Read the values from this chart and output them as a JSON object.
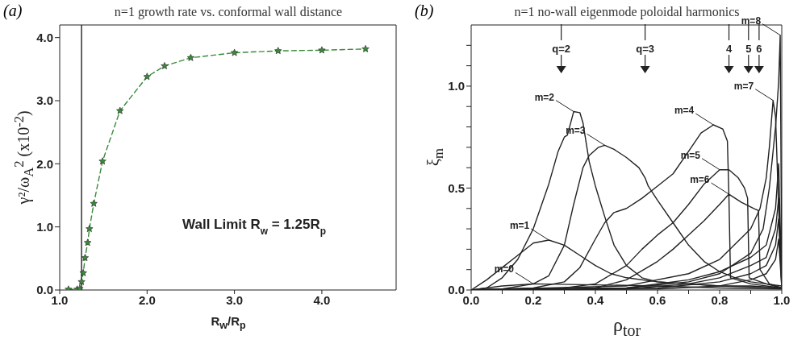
{
  "chart_data": [
    {
      "type": "line",
      "title": "n=1 growth rate vs. conformal wall distance",
      "xlabel": "R$_{w}$/R$_{p}$",
      "ylabel": "γ²/ω$_{A}$$^{2}$ (x10$^{-2}$)",
      "annotations": [
        "(a)"
      ],
      "xlim": [
        1.0,
        4.85
      ],
      "ylim": [
        0,
        4.2
      ],
      "xticks": [
        {
          "value": 1,
          "label": "1.0"
        },
        {
          "value": 2,
          "label": "2.0"
        },
        {
          "value": 3,
          "label": "3.0"
        },
        {
          "value": 4,
          "label": "4.0"
        }
      ],
      "yticks": [
        {
          "value": 0,
          "label": "0.0"
        },
        {
          "value": 1,
          "label": "1.0"
        },
        {
          "value": 2,
          "label": "2.0"
        },
        {
          "value": 3,
          "label": "3.0"
        },
        {
          "value": 4,
          "label": "4.0"
        }
      ],
      "marker": "star",
      "line_style": "dashed",
      "ref_lines": [
        {
          "axis": "x",
          "value": 1.25,
          "label": "Wall Limit  R$_{w}$ = 1.25R$_{p}$",
          "color": "#222222"
        }
      ],
      "series": [
        {
          "color": "#3a8a3a",
          "x": [
            1.1,
            1.2,
            1.23,
            1.25,
            1.27,
            1.29,
            1.32,
            1.34,
            1.39,
            1.49,
            1.69,
            2.0,
            2.2,
            2.5,
            3.0,
            3.5,
            4.0,
            4.5
          ],
          "values": [
            0.01,
            0.01,
            0.02,
            0.13,
            0.27,
            0.51,
            0.75,
            0.97,
            1.37,
            2.04,
            2.84,
            3.38,
            3.55,
            3.68,
            3.76,
            3.79,
            3.8,
            3.82
          ]
        }
      ]
    },
    {
      "type": "line",
      "title": "n=1 no-wall eigenmode poloidal harmonics",
      "xlabel": "ρ$_{tor}$",
      "ylabel": "ξ$_{m}$",
      "marker": "none",
      "line_style": "solid",
      "annotations": [
        "(b)",
        "q=2",
        "q=3",
        "4",
        "5",
        "6"
      ],
      "xlim": [
        0,
        1
      ],
      "ylim": [
        0,
        1.3
      ],
      "xticks": [
        {
          "value": 0,
          "label": "0.0"
        },
        {
          "value": 0.1,
          "label": null
        },
        {
          "value": 0.2,
          "label": "0.2"
        },
        {
          "value": 0.3,
          "label": null
        },
        {
          "value": 0.4,
          "label": "0.4"
        },
        {
          "value": 0.5,
          "label": null
        },
        {
          "value": 0.6,
          "label": "0.6"
        },
        {
          "value": 0.7,
          "label": null
        },
        {
          "value": 0.8,
          "label": "0.8"
        },
        {
          "value": 0.9,
          "label": null
        },
        {
          "value": 1,
          "label": "1.0"
        }
      ],
      "yticks": [
        {
          "value": 0,
          "label": "0.0"
        },
        {
          "value": 0.1,
          "label": null
        },
        {
          "value": 0.2,
          "label": null
        },
        {
          "value": 0.3,
          "label": null
        },
        {
          "value": 0.4,
          "label": null
        },
        {
          "value": 0.5,
          "label": "0.5"
        },
        {
          "value": 0.6,
          "label": null
        },
        {
          "value": 0.7,
          "label": null
        },
        {
          "value": 0.8,
          "label": null
        },
        {
          "value": 0.9,
          "label": null
        },
        {
          "value": 1,
          "label": "1.0"
        },
        {
          "value": 1.1,
          "label": null
        },
        {
          "value": 1.2,
          "label": null
        }
      ],
      "series": [
        {
          "name": "m=0",
          "color": "#222222",
          "x": [
            0,
            0.1,
            0.2,
            0.4,
            0.6,
            0.8,
            1.0
          ],
          "values": [
            0,
            0.02,
            0.03,
            0.025,
            0.02,
            0.01,
            0.005
          ]
        },
        {
          "name": "m=1",
          "color": "#222222",
          "x": [
            0,
            0.05,
            0.1,
            0.15,
            0.2,
            0.25,
            0.3,
            0.35,
            0.4,
            0.45,
            0.5,
            0.6,
            0.7,
            0.8,
            0.9,
            1.0
          ],
          "values": [
            0,
            0.05,
            0.11,
            0.17,
            0.23,
            0.245,
            0.22,
            0.17,
            0.12,
            0.08,
            0.06,
            0.04,
            0.03,
            0.02,
            0.015,
            0.01
          ]
        },
        {
          "name": "m=2",
          "color": "#222222",
          "x": [
            0,
            0.05,
            0.1,
            0.15,
            0.2,
            0.25,
            0.28,
            0.3,
            0.31,
            0.33,
            0.35,
            0.36,
            0.38,
            0.4,
            0.43,
            0.46,
            0.5,
            0.55,
            0.6,
            0.7,
            0.8,
            0.9,
            1.0
          ],
          "values": [
            0,
            0.01,
            0.06,
            0.15,
            0.3,
            0.52,
            0.68,
            0.75,
            0.76,
            0.875,
            0.87,
            0.82,
            0.63,
            0.51,
            0.36,
            0.22,
            0.12,
            0.06,
            0.04,
            0.03,
            0.02,
            0.02,
            0.01
          ]
        },
        {
          "name": "m=3",
          "color": "#222222",
          "x": [
            0,
            0.1,
            0.2,
            0.25,
            0.3,
            0.33,
            0.36,
            0.38,
            0.41,
            0.43,
            0.46,
            0.5,
            0.54,
            0.56,
            0.57,
            0.6,
            0.65,
            0.7,
            0.75,
            0.8,
            0.85,
            0.9,
            0.95,
            1.0
          ],
          "values": [
            0,
            0.005,
            0.03,
            0.07,
            0.22,
            0.42,
            0.6,
            0.66,
            0.7,
            0.71,
            0.69,
            0.65,
            0.6,
            0.55,
            0.51,
            0.44,
            0.33,
            0.22,
            0.14,
            0.09,
            0.06,
            0.04,
            0.03,
            0.02
          ]
        },
        {
          "name": "m=4",
          "color": "#222222",
          "x": [
            0,
            0.2,
            0.3,
            0.35,
            0.4,
            0.43,
            0.46,
            0.5,
            0.55,
            0.6,
            0.65,
            0.7,
            0.74,
            0.78,
            0.81,
            0.825,
            0.83,
            0.835,
            0.9,
            1.0
          ],
          "values": [
            0,
            0.01,
            0.04,
            0.11,
            0.25,
            0.33,
            0.38,
            0.4,
            0.45,
            0.51,
            0.57,
            0.68,
            0.77,
            0.81,
            0.79,
            0.73,
            0.45,
            0.06,
            0.03,
            0.01
          ]
        },
        {
          "name": "m=5",
          "color": "#222222",
          "x": [
            0,
            0.3,
            0.4,
            0.5,
            0.55,
            0.6,
            0.65,
            0.7,
            0.75,
            0.8,
            0.83,
            0.86,
            0.88,
            0.89,
            0.895,
            0.95,
            1.0
          ],
          "values": [
            0,
            0.01,
            0.03,
            0.12,
            0.2,
            0.27,
            0.33,
            0.42,
            0.52,
            0.59,
            0.59,
            0.55,
            0.5,
            0.45,
            0.06,
            0.03,
            0.01
          ]
        },
        {
          "name": "m=6",
          "color": "#222222",
          "x": [
            0,
            0.3,
            0.4,
            0.5,
            0.6,
            0.65,
            0.7,
            0.75,
            0.8,
            0.83,
            0.87,
            0.91,
            0.925,
            0.93,
            0.96,
            1.0
          ],
          "values": [
            0,
            0.005,
            0.01,
            0.05,
            0.14,
            0.2,
            0.27,
            0.34,
            0.42,
            0.47,
            0.43,
            0.4,
            0.39,
            0.1,
            0.03,
            0.01
          ]
        },
        {
          "name": "m=7",
          "color": "#222222",
          "x": [
            0,
            0.5,
            0.7,
            0.8,
            0.9,
            0.93,
            0.95,
            0.96,
            0.972,
            0.98,
            0.99,
            1.0
          ],
          "values": [
            0,
            0.02,
            0.08,
            0.15,
            0.3,
            0.4,
            0.55,
            0.7,
            0.93,
            0.85,
            0.4,
            0.02
          ]
        },
        {
          "name": "m=8",
          "color": "#222222",
          "x": [
            0,
            0.5,
            0.7,
            0.8,
            0.9,
            0.94,
            0.96,
            0.98,
            0.99,
            0.995,
            1.0
          ],
          "values": [
            0,
            0.01,
            0.04,
            0.08,
            0.18,
            0.3,
            0.5,
            0.8,
            1.02,
            1.25,
            0.05
          ]
        },
        {
          "color": "#222222",
          "x": [
            0,
            0.5,
            0.7,
            0.8,
            0.9,
            0.95,
            0.98,
            0.99,
            1.0
          ],
          "values": [
            0,
            0.01,
            0.05,
            0.09,
            0.16,
            0.22,
            0.4,
            0.62,
            0.02
          ]
        },
        {
          "color": "#222222",
          "x": [
            0,
            0.5,
            0.7,
            0.8,
            0.9,
            0.95,
            0.98,
            0.99,
            1.0
          ],
          "values": [
            0,
            0.005,
            0.03,
            0.06,
            0.12,
            0.16,
            0.3,
            0.45,
            0.02
          ]
        },
        {
          "color": "#222222",
          "x": [
            0,
            0.6,
            0.8,
            0.9,
            0.95,
            0.98,
            0.99,
            1.0
          ],
          "values": [
            0,
            0.01,
            0.04,
            0.08,
            0.12,
            0.22,
            0.35,
            0.01
          ]
        },
        {
          "color": "#222222",
          "x": [
            0,
            0.6,
            0.8,
            0.9,
            0.95,
            0.98,
            0.99,
            1.0
          ],
          "values": [
            0,
            0.005,
            0.02,
            0.05,
            0.08,
            0.15,
            0.25,
            0.01
          ]
        }
      ]
    }
  ]
}
